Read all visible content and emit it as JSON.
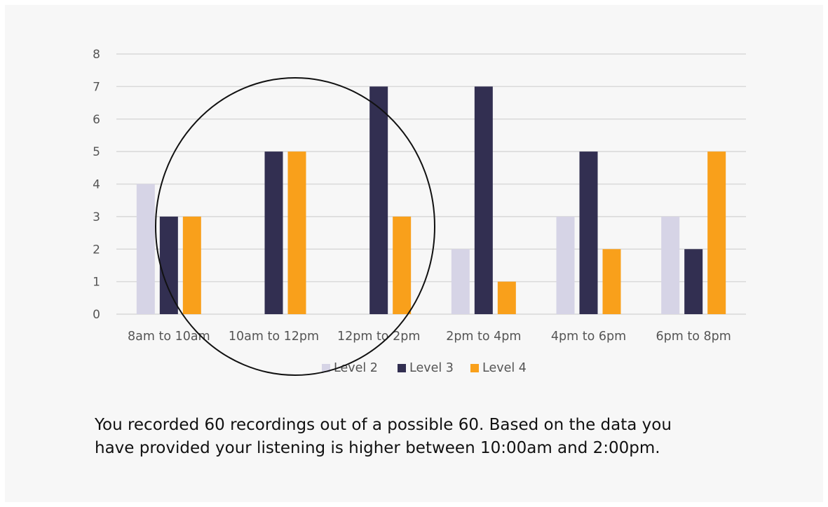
{
  "chart_data": {
    "type": "bar",
    "categories": [
      "8am to 10am",
      "10am to 12pm",
      "12pm to 2pm",
      "2pm to 4pm",
      "4pm to 6pm",
      "6pm to 8pm"
    ],
    "series": [
      {
        "name": "Level 2",
        "color": "#d6d4e6",
        "values": [
          4,
          0,
          0,
          2,
          3,
          3
        ]
      },
      {
        "name": "Level 3",
        "color": "#322f51",
        "values": [
          3,
          5,
          7,
          7,
          5,
          2
        ]
      },
      {
        "name": "Level 4",
        "color": "#f9a01b",
        "values": [
          3,
          5,
          3,
          1,
          2,
          5
        ]
      }
    ],
    "y_ticks": [
      "0",
      "1",
      "2",
      "3",
      "4",
      "5",
      "6",
      "7",
      "8"
    ],
    "ylim": [
      0,
      8
    ],
    "grid": true,
    "legend_position": "bottom",
    "annotation": "circle highlighting 10am to 2pm"
  },
  "summary": {
    "line1": "You recorded 60 recordings out of a possible 60. Based on the data you",
    "line2": "have provided your listening is higher between 10:00am and 2:00pm."
  }
}
